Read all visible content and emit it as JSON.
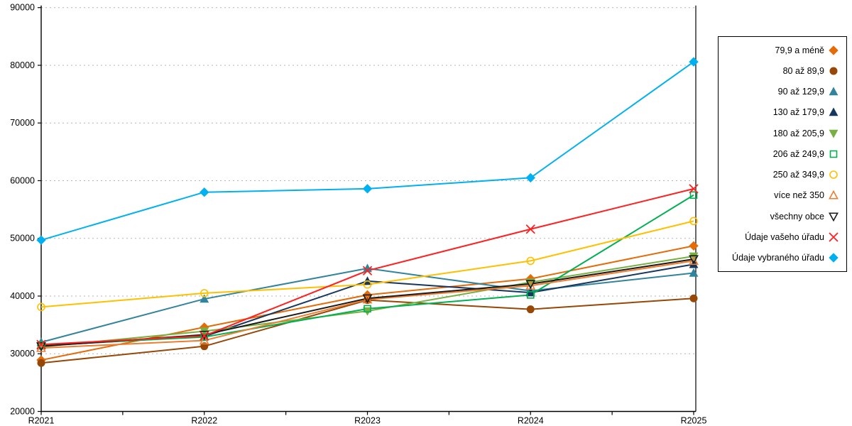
{
  "chart_data": {
    "type": "line",
    "title": "",
    "xlabel": "",
    "ylabel": "",
    "x": [
      "R2021",
      "R2022",
      "R2023",
      "R2024",
      "R2025"
    ],
    "ylim": [
      20000,
      90000
    ],
    "ytick_step": 10000,
    "yticks": [
      20000,
      30000,
      40000,
      50000,
      60000,
      70000,
      80000,
      90000
    ],
    "grid": "horizontal dashed",
    "legend_position": "right",
    "series": [
      {
        "name": "79,9 a méně",
        "color": "#E36C09",
        "marker": "diamond",
        "open": false,
        "values": [
          28900,
          34600,
          40200,
          43000,
          48700
        ]
      },
      {
        "name": "80 až 89,9",
        "color": "#974706",
        "marker": "circle",
        "open": false,
        "values": [
          28400,
          31300,
          39300,
          37700,
          39600
        ]
      },
      {
        "name": "90 až 129,9",
        "color": "#31849B",
        "marker": "triangle-up",
        "open": false,
        "values": [
          32000,
          39500,
          44800,
          40900,
          44000
        ]
      },
      {
        "name": "130 až 179,9",
        "color": "#17375E",
        "marker": "triangle-up",
        "open": false,
        "values": [
          31400,
          33000,
          42600,
          40600,
          45500
        ]
      },
      {
        "name": "180 až 205,9",
        "color": "#76B041",
        "marker": "triangle-down",
        "open": false,
        "values": [
          31200,
          33900,
          37400,
          42400,
          46900
        ]
      },
      {
        "name": "206 až 249,9",
        "color": "#00B050",
        "marker": "square",
        "open": true,
        "values": [
          31500,
          32900,
          37800,
          40200,
          57500
        ]
      },
      {
        "name": "250 až 349,9",
        "color": "#FFC000",
        "marker": "circle",
        "open": true,
        "values": [
          38100,
          40500,
          42000,
          46100,
          53000
        ]
      },
      {
        "name": "více než 350",
        "color": "#ED7D31",
        "marker": "triangle-up",
        "open": true,
        "values": [
          31000,
          32300,
          39400,
          41800,
          46100
        ]
      },
      {
        "name": "všechny obce",
        "color": "#1A1A1A",
        "marker": "triangle-down",
        "open": true,
        "values": [
          31300,
          33300,
          39600,
          42100,
          46400
        ]
      },
      {
        "name": "Údaje vašeho úřadu",
        "color": "#FF2020",
        "marker": "x",
        "open": true,
        "values": [
          31600,
          33100,
          44400,
          51600,
          58600
        ]
      },
      {
        "name": "Údaje vybraného úřadu",
        "color": "#00B0F0",
        "marker": "diamond",
        "open": false,
        "values": [
          49700,
          58000,
          58600,
          60500,
          80600
        ]
      }
    ]
  }
}
